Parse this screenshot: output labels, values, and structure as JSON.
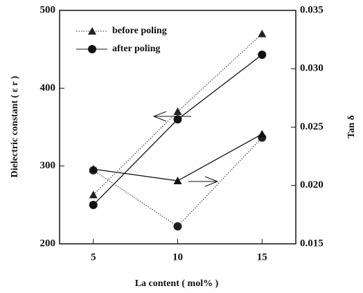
{
  "chart_data": {
    "type": "line",
    "xlabel": "La content ( mol% )",
    "ylabel": "Dielectric constant ( ε r )",
    "y2label": "Tan δ",
    "x": [
      5,
      10,
      15
    ],
    "xlim": [
      3,
      17
    ],
    "xticks": [
      5,
      10,
      15
    ],
    "ylim": [
      200,
      500
    ],
    "yticks": [
      200,
      300,
      400,
      500
    ],
    "y2lim": [
      0.015,
      0.035
    ],
    "y2ticks": [
      0.015,
      {
        "value": 0.02,
        "label": "0.020"
      },
      0.025,
      {
        "value": 0.03,
        "label": "0.030"
      },
      0.035
    ],
    "legend": "upper left",
    "series": [
      {
        "name": "before poling",
        "color": "#222",
        "marker": "triangle",
        "dash": "dotted",
        "values": [
          263,
          370,
          470
        ]
      },
      {
        "name": "after poling",
        "color": "#111",
        "marker": "circle",
        "dash": "solid",
        "values": [
          250,
          360,
          443
        ]
      },
      {
        "color": "#222",
        "marker": "circle",
        "dash": "dotted",
        "axis": "y2",
        "values": [
          0.0213,
          0.0165,
          0.0241
        ]
      },
      {
        "color": "#111",
        "marker": "triangle",
        "dash": "solid",
        "axis": "y2",
        "values": [
          0.0214,
          0.0204,
          0.0244
        ]
      }
    ]
  }
}
